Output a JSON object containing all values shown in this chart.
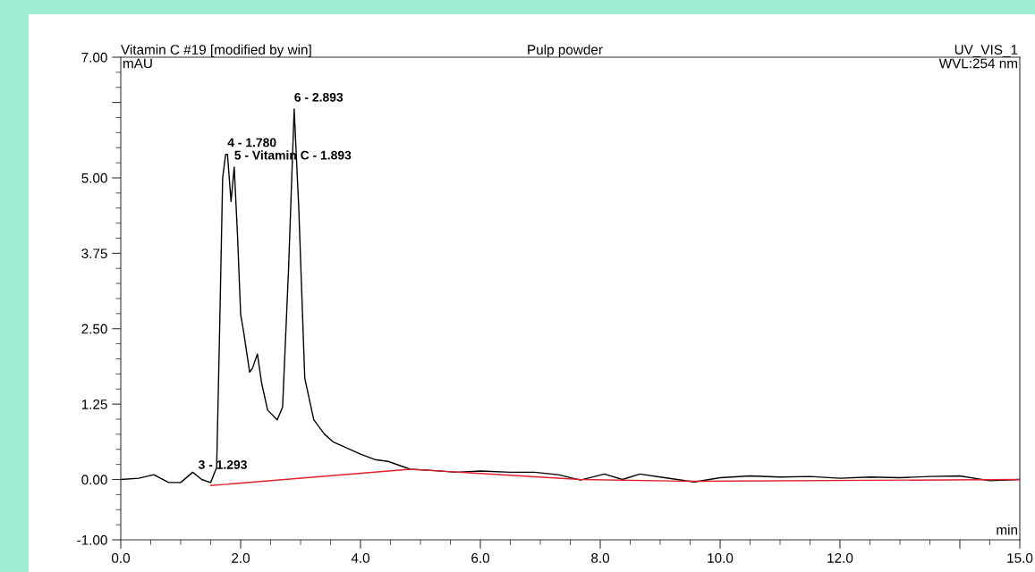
{
  "chart_data": {
    "type": "line",
    "title": "Vitamin C #19 [modified by win]",
    "subtitle": "Pulp powder",
    "xlabel": "min",
    "ylabel": "mAU",
    "annotations": [
      "UV_VIS_1",
      "WVL:254 nm",
      {
        "text": "3 - 1.293",
        "x": 1.293,
        "y": 0.05
      },
      {
        "text": "4 - 1.780",
        "x": 1.78,
        "y": 5.39
      },
      {
        "text": "5 - Vitamin C - 1.893",
        "x": 1.893,
        "y": 5.18
      },
      {
        "text": "6 - 2.893",
        "x": 2.893,
        "y": 6.14
      }
    ],
    "series": [
      {
        "color": "#000000",
        "x": [
          0,
          0.3,
          0.55,
          0.8,
          1.0,
          1.2,
          1.35,
          1.5,
          1.6,
          1.65,
          1.7,
          1.75,
          1.78,
          1.84,
          1.893,
          1.95,
          2.0,
          2.05,
          2.15,
          2.2,
          2.28,
          2.35,
          2.45,
          2.61,
          2.7,
          2.8,
          2.893,
          2.97,
          3.07,
          3.22,
          3.4,
          3.55,
          3.71,
          4.0,
          4.24,
          4.46,
          4.83,
          5.2,
          5.6,
          6.0,
          6.5,
          6.9,
          7.3,
          7.67,
          8.07,
          8.37,
          8.66,
          9.0,
          9.57,
          10.0,
          10.5,
          11.0,
          11.5,
          12.0,
          12.5,
          13.0,
          13.5,
          14.0,
          14.5,
          15.0
        ],
        "values": [
          0,
          0.02,
          0.08,
          -0.05,
          -0.05,
          0.12,
          0.0,
          -0.05,
          0.2,
          2.5,
          5.0,
          5.39,
          5.39,
          4.61,
          5.18,
          4.0,
          2.74,
          2.45,
          1.78,
          1.85,
          2.08,
          1.6,
          1.15,
          0.99,
          1.2,
          3.5,
          6.14,
          4.5,
          1.68,
          0.99,
          0.75,
          0.62,
          0.55,
          0.42,
          0.33,
          0.3,
          0.17,
          0.15,
          0.12,
          0.14,
          0.12,
          0.12,
          0.08,
          -0.01,
          0.09,
          0.0,
          0.09,
          0.04,
          -0.04,
          0.03,
          0.06,
          0.04,
          0.05,
          0.02,
          0.04,
          0.03,
          0.05,
          0.06,
          -0.02,
          0.0
        ]
      },
      {
        "color": "#e0202a",
        "x": [
          1.5,
          4.83,
          7.67,
          9.57,
          15.0
        ],
        "values": [
          -0.1,
          0.17,
          0.0,
          -0.03,
          0.0
        ]
      }
    ],
    "xlim": [
      0,
      15.0
    ],
    "ylim": [
      -1.0,
      7.0
    ],
    "xticks": [
      {
        "value": 0,
        "label": "0.0"
      },
      {
        "value": 2,
        "label": "2.0"
      },
      {
        "value": 4,
        "label": "4.0"
      },
      {
        "value": 6,
        "label": "6.0"
      },
      {
        "value": 8,
        "label": "8.0"
      },
      {
        "value": 10,
        "label": "10.0"
      },
      {
        "value": 12,
        "label": "12.0"
      },
      {
        "value": 14,
        "label": null
      },
      {
        "value": 15,
        "label": "15.0"
      }
    ],
    "yticks": [
      {
        "value": -1,
        "label": "-1.00"
      },
      {
        "value": 0,
        "label": "0.00"
      },
      {
        "value": 1.25,
        "label": "1.25"
      },
      {
        "value": 2.5,
        "label": "2.50"
      },
      {
        "value": 3.75,
        "label": "3.75"
      },
      {
        "value": 5,
        "label": "5.00"
      },
      {
        "value": 6.25,
        "label": null
      },
      {
        "value": 7,
        "label": "7.00"
      }
    ],
    "grid": false,
    "legend": false,
    "marker": "none",
    "line_style": "solid"
  }
}
